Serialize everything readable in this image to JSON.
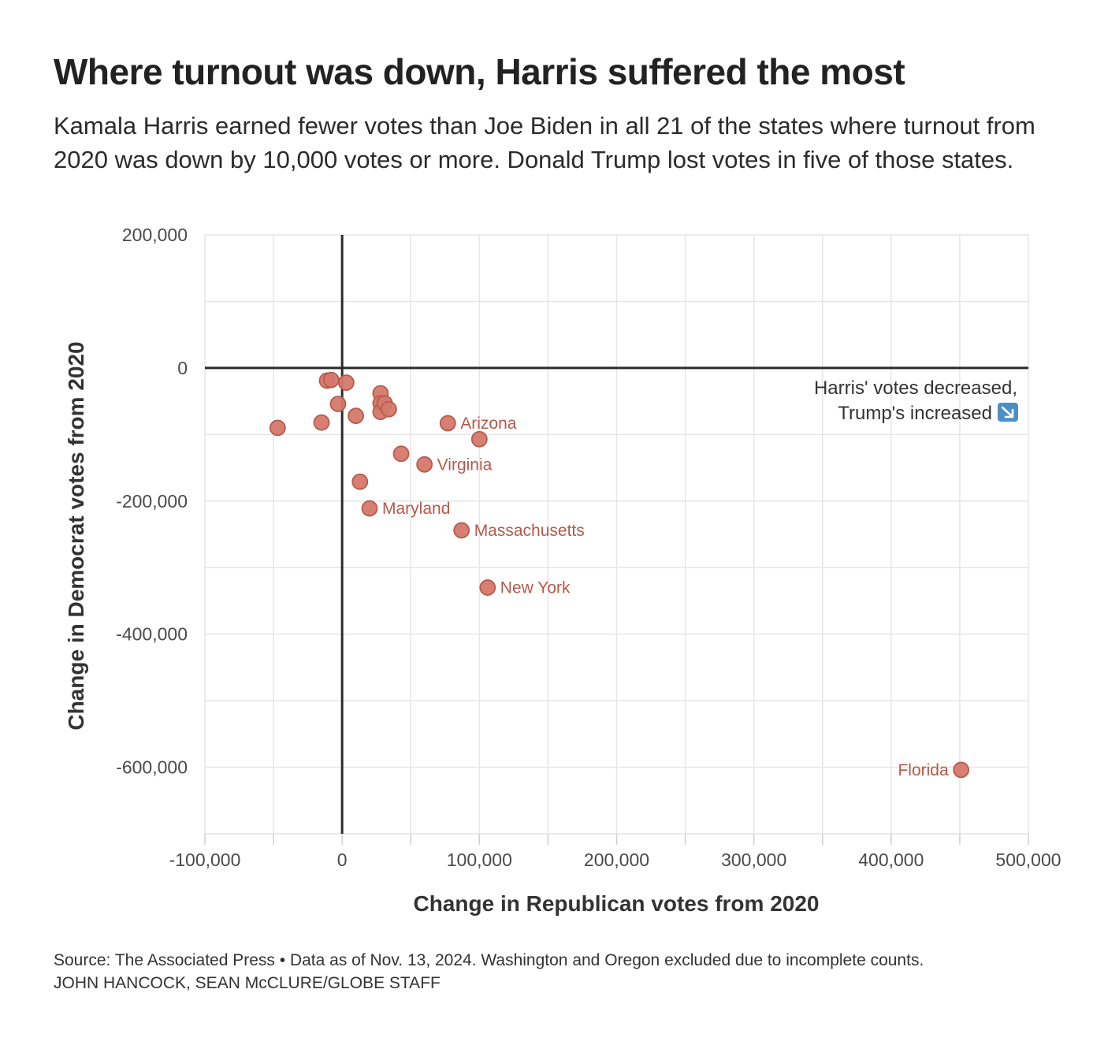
{
  "chart_data": {
    "type": "scatter",
    "title": "Where turnout was down, Harris suffered the most",
    "subtitle": "Kamala Harris earned fewer votes than Joe Biden in all 21 of the states where turnout from 2020 was down by 10,000 votes or more. Donald Trump lost votes in five of those states.",
    "xlabel": "Change in Republican votes from 2020",
    "ylabel": "Change in Democrat votes from 2020",
    "xlim": [
      -100000,
      500000
    ],
    "ylim": [
      -700000,
      200000
    ],
    "x_ticks": [
      -100000,
      0,
      100000,
      200000,
      300000,
      400000,
      500000
    ],
    "x_tick_labels": [
      "-100,000",
      "0",
      "100,000",
      "200,000",
      "300,000",
      "400,000",
      "500,000"
    ],
    "y_ticks": [
      200000,
      0,
      -200000,
      -400000,
      -600000
    ],
    "y_tick_labels": [
      "200,000",
      "0",
      "-200,000",
      "-400,000",
      "-600,000"
    ],
    "grid": true,
    "point_color": "#d4786a",
    "point_stroke": "#b85a4c",
    "axis_color": "#2b2b2b",
    "points": [
      {
        "x": -47000,
        "y": -90000,
        "label": ""
      },
      {
        "x": -15000,
        "y": -82000,
        "label": ""
      },
      {
        "x": -11000,
        "y": -19000,
        "label": ""
      },
      {
        "x": -8000,
        "y": -18000,
        "label": ""
      },
      {
        "x": -3000,
        "y": -54000,
        "label": ""
      },
      {
        "x": 3000,
        "y": -22000,
        "label": ""
      },
      {
        "x": 10000,
        "y": -72000,
        "label": ""
      },
      {
        "x": 13000,
        "y": -171000,
        "label": ""
      },
      {
        "x": 20000,
        "y": -211000,
        "label": "Maryland"
      },
      {
        "x": 28000,
        "y": -38000,
        "label": ""
      },
      {
        "x": 28000,
        "y": -53000,
        "label": ""
      },
      {
        "x": 28000,
        "y": -66000,
        "label": ""
      },
      {
        "x": 31000,
        "y": -53000,
        "label": ""
      },
      {
        "x": 34000,
        "y": -62000,
        "label": ""
      },
      {
        "x": 43000,
        "y": -129000,
        "label": ""
      },
      {
        "x": 60000,
        "y": -145000,
        "label": "Virginia"
      },
      {
        "x": 77000,
        "y": -83000,
        "label": "Arizona"
      },
      {
        "x": 87000,
        "y": -244000,
        "label": "Massachusetts"
      },
      {
        "x": 100000,
        "y": -107000,
        "label": ""
      },
      {
        "x": 106000,
        "y": -330000,
        "label": "New York"
      },
      {
        "x": 451000,
        "y": -604000,
        "label": "Florida"
      }
    ],
    "annotation": {
      "line1": "Harris' votes decreased,",
      "line2": "Trump's increased",
      "icon": "arrow-down-right-icon"
    }
  },
  "footer": {
    "source": "Source: The Associated Press • Data as of Nov. 13, 2024. Washington and Oregon excluded due to incomplete counts.",
    "credit": "JOHN HANCOCK, SEAN McCLURE/GLOBE STAFF"
  }
}
